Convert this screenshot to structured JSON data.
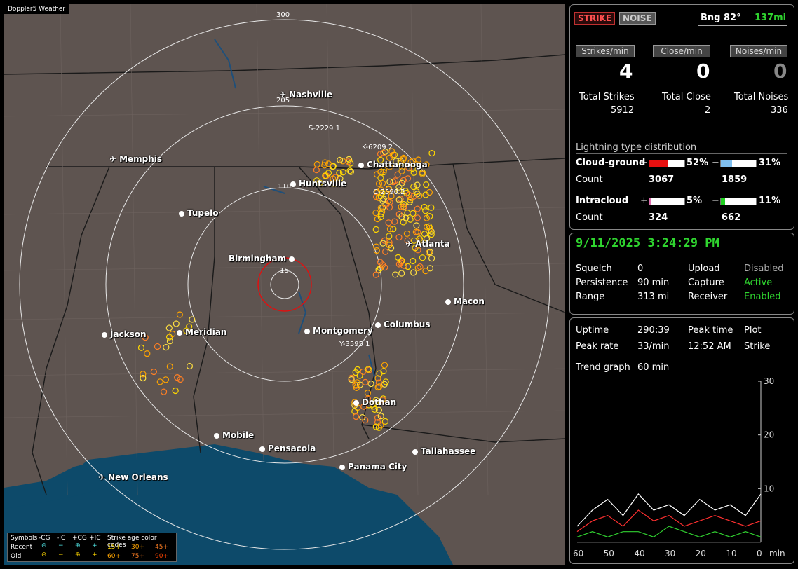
{
  "app": {
    "tag": "Doppler5 Weather"
  },
  "map": {
    "range_labels": [
      "300",
      "205",
      "110",
      "15"
    ],
    "cities": [
      {
        "name": "Nashville",
        "icon": "plane"
      },
      {
        "name": "Memphis",
        "icon": "plane"
      },
      {
        "name": "Chattanooga",
        "icon": "dot"
      },
      {
        "name": "Huntsville",
        "icon": "dot"
      },
      {
        "name": "Tupelo",
        "icon": "dot"
      },
      {
        "name": "Birmingham",
        "icon": "dot"
      },
      {
        "name": "Atlanta",
        "icon": "plane"
      },
      {
        "name": "Macon",
        "icon": "dot"
      },
      {
        "name": "Jackson",
        "icon": "dot"
      },
      {
        "name": "Meridian",
        "icon": "dot"
      },
      {
        "name": "Montgomery",
        "icon": "dot"
      },
      {
        "name": "Columbus",
        "icon": "dot"
      },
      {
        "name": "Dothan",
        "icon": "dot"
      },
      {
        "name": "Mobile",
        "icon": "dot"
      },
      {
        "name": "Pensacola",
        "icon": "dot"
      },
      {
        "name": "Tallahassee",
        "icon": "dot"
      },
      {
        "name": "Panama City",
        "icon": "dot"
      },
      {
        "name": "New Orleans",
        "icon": "plane"
      }
    ],
    "sensors": [
      "S-2229 1",
      "K-6209 2",
      "C-2590 2",
      "Y-3595 1"
    ],
    "legend": {
      "symbols": "Symbols",
      "cg_neg": "-CG",
      "ic_neg": "-IC",
      "cg_pos": "+CG",
      "ic_pos": "+IC",
      "age_title": "Strike age color codes",
      "recent": "Recent",
      "old": "Old",
      "ages": [
        "15+",
        "30+",
        "45+",
        "60+",
        "75+",
        "90+"
      ],
      "age_colors": [
        "#ffd700",
        "#ffa500",
        "#ff7f24",
        "#ffa500",
        "#ff7f24",
        "#ff4500"
      ]
    }
  },
  "top": {
    "strike_button": "STRIKE",
    "noise_button": "NOISE",
    "bearing": "Bng 82°",
    "distance": "137mi",
    "strikes_label": "Strikes/min",
    "close_label": "Close/min",
    "noises_label": "Noises/min",
    "strikes_value": "4",
    "close_value": "0",
    "noises_value": "0",
    "total_strikes_label": "Total Strikes",
    "total_close_label": "Total Close",
    "total_noises_label": "Total Noises",
    "total_strikes": "5912",
    "total_close": "2",
    "total_noises": "336",
    "dist_title": "Lightning type distribution",
    "cg_label": "Cloud-ground",
    "ic_label": "Intracloud",
    "count_label": "Count",
    "cg_pos_pct": "52%",
    "cg_neg_pct": "31%",
    "ic_pos_pct": "5%",
    "ic_neg_pct": "11%",
    "cg_pos_fraction": 0.52,
    "cg_neg_fraction": 0.31,
    "ic_pos_fraction": 0.05,
    "ic_neg_fraction": 0.11,
    "cg_pos_count": "3067",
    "cg_neg_count": "1859",
    "ic_pos_count": "324",
    "ic_neg_count": "662",
    "plus": "+",
    "minus": "−"
  },
  "mid": {
    "datetime": "9/11/2025 3:24:29 PM",
    "squelch_label": "Squelch",
    "squelch": "0",
    "persistence_label": "Persistence",
    "persistence": "90 min",
    "range_label": "Range",
    "range": "313 mi",
    "upload_label": "Upload",
    "upload": "Disabled",
    "capture_label": "Capture",
    "capture": "Active",
    "receiver_label": "Receiver",
    "receiver": "Enabled"
  },
  "bottom": {
    "uptime_label": "Uptime",
    "uptime": "290:39",
    "peak_time_label": "Peak time",
    "plot_label": "Plot",
    "peak_rate_label": "Peak rate",
    "peak_rate": "33/min",
    "peak_time": "12:52 AM",
    "plot": "Strike",
    "trend_label": "Trend graph",
    "trend": "60 min"
  },
  "chart_data": {
    "type": "line",
    "x": [
      60,
      55,
      50,
      45,
      40,
      35,
      30,
      25,
      20,
      15,
      10,
      5,
      0
    ],
    "xlabel": "min",
    "xticks": [
      "60",
      "50",
      "40",
      "30",
      "20",
      "10",
      "0"
    ],
    "yticks": [
      "30",
      "20",
      "10"
    ],
    "ylim": [
      0,
      30
    ],
    "series": [
      {
        "color": "#ffffff",
        "values": [
          3,
          6,
          8,
          5,
          9,
          6,
          7,
          5,
          8,
          6,
          7,
          5,
          9
        ]
      },
      {
        "color": "#ff3030",
        "values": [
          2,
          4,
          5,
          3,
          6,
          4,
          5,
          3,
          4,
          5,
          4,
          3,
          4
        ]
      },
      {
        "color": "#30d030",
        "values": [
          1,
          2,
          1,
          2,
          2,
          1,
          3,
          2,
          1,
          2,
          1,
          2,
          1
        ]
      }
    ]
  }
}
